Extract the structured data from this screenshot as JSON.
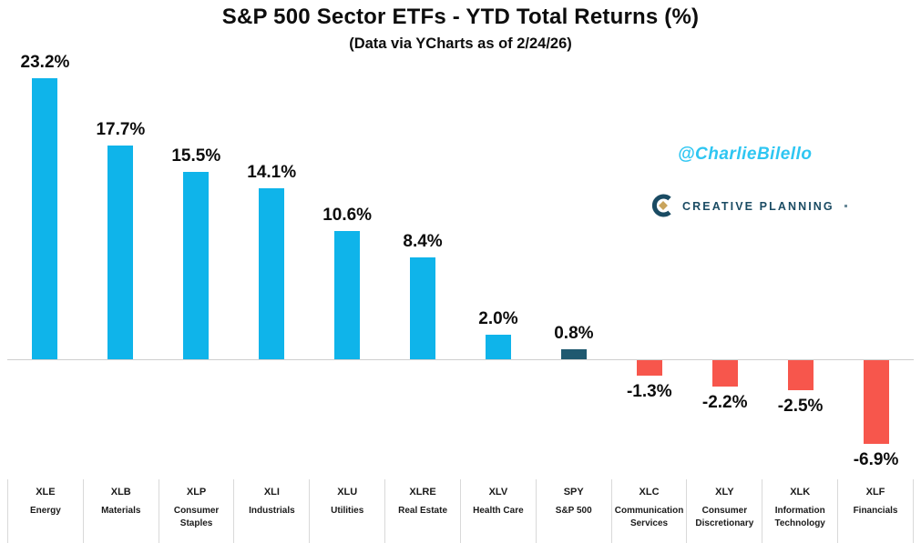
{
  "chart_data": {
    "type": "bar",
    "title": "S&P 500 Sector ETFs - YTD Total Returns (%)",
    "subtitle": "(Data via YCharts as of 2/24/26)",
    "categories": [
      "XLE",
      "XLB",
      "XLP",
      "XLI",
      "XLU",
      "XLRE",
      "XLV",
      "SPY",
      "XLC",
      "XLY",
      "XLK",
      "XLF"
    ],
    "sector_names": [
      "Energy",
      "Materials",
      "Consumer Staples",
      "Industrials",
      "Utilities",
      "Real Estate",
      "Health Care",
      "S&P 500",
      "Communication Services",
      "Consumer Discretionary",
      "Information Technology",
      "Financials"
    ],
    "values": [
      23.2,
      17.7,
      15.5,
      14.1,
      10.6,
      8.4,
      2.0,
      0.8,
      -1.3,
      -2.2,
      -2.5,
      -6.9
    ],
    "value_labels": [
      "23.2%",
      "17.7%",
      "15.5%",
      "14.1%",
      "10.6%",
      "8.4%",
      "2.0%",
      "0.8%",
      "-1.3%",
      "-2.2%",
      "-2.5%",
      "-6.9%"
    ],
    "bar_roles": [
      "positive",
      "positive",
      "positive",
      "positive",
      "positive",
      "positive",
      "positive",
      "benchmark",
      "negative",
      "negative",
      "negative",
      "negative"
    ],
    "palette": {
      "positive": "#0FB4EA",
      "benchmark": "#1F5970",
      "negative": "#F7564C"
    },
    "xlabel": "",
    "ylabel": "",
    "ylim": [
      -8,
      24
    ],
    "grid": false,
    "legend": false,
    "zero_line": true
  },
  "watermark": {
    "text": "@CharlieBilello",
    "color": "#2EC6F2"
  },
  "brand": {
    "text": "CREATIVE PLANNING",
    "color": "#1A4B63",
    "accent": "#C9A45C"
  }
}
